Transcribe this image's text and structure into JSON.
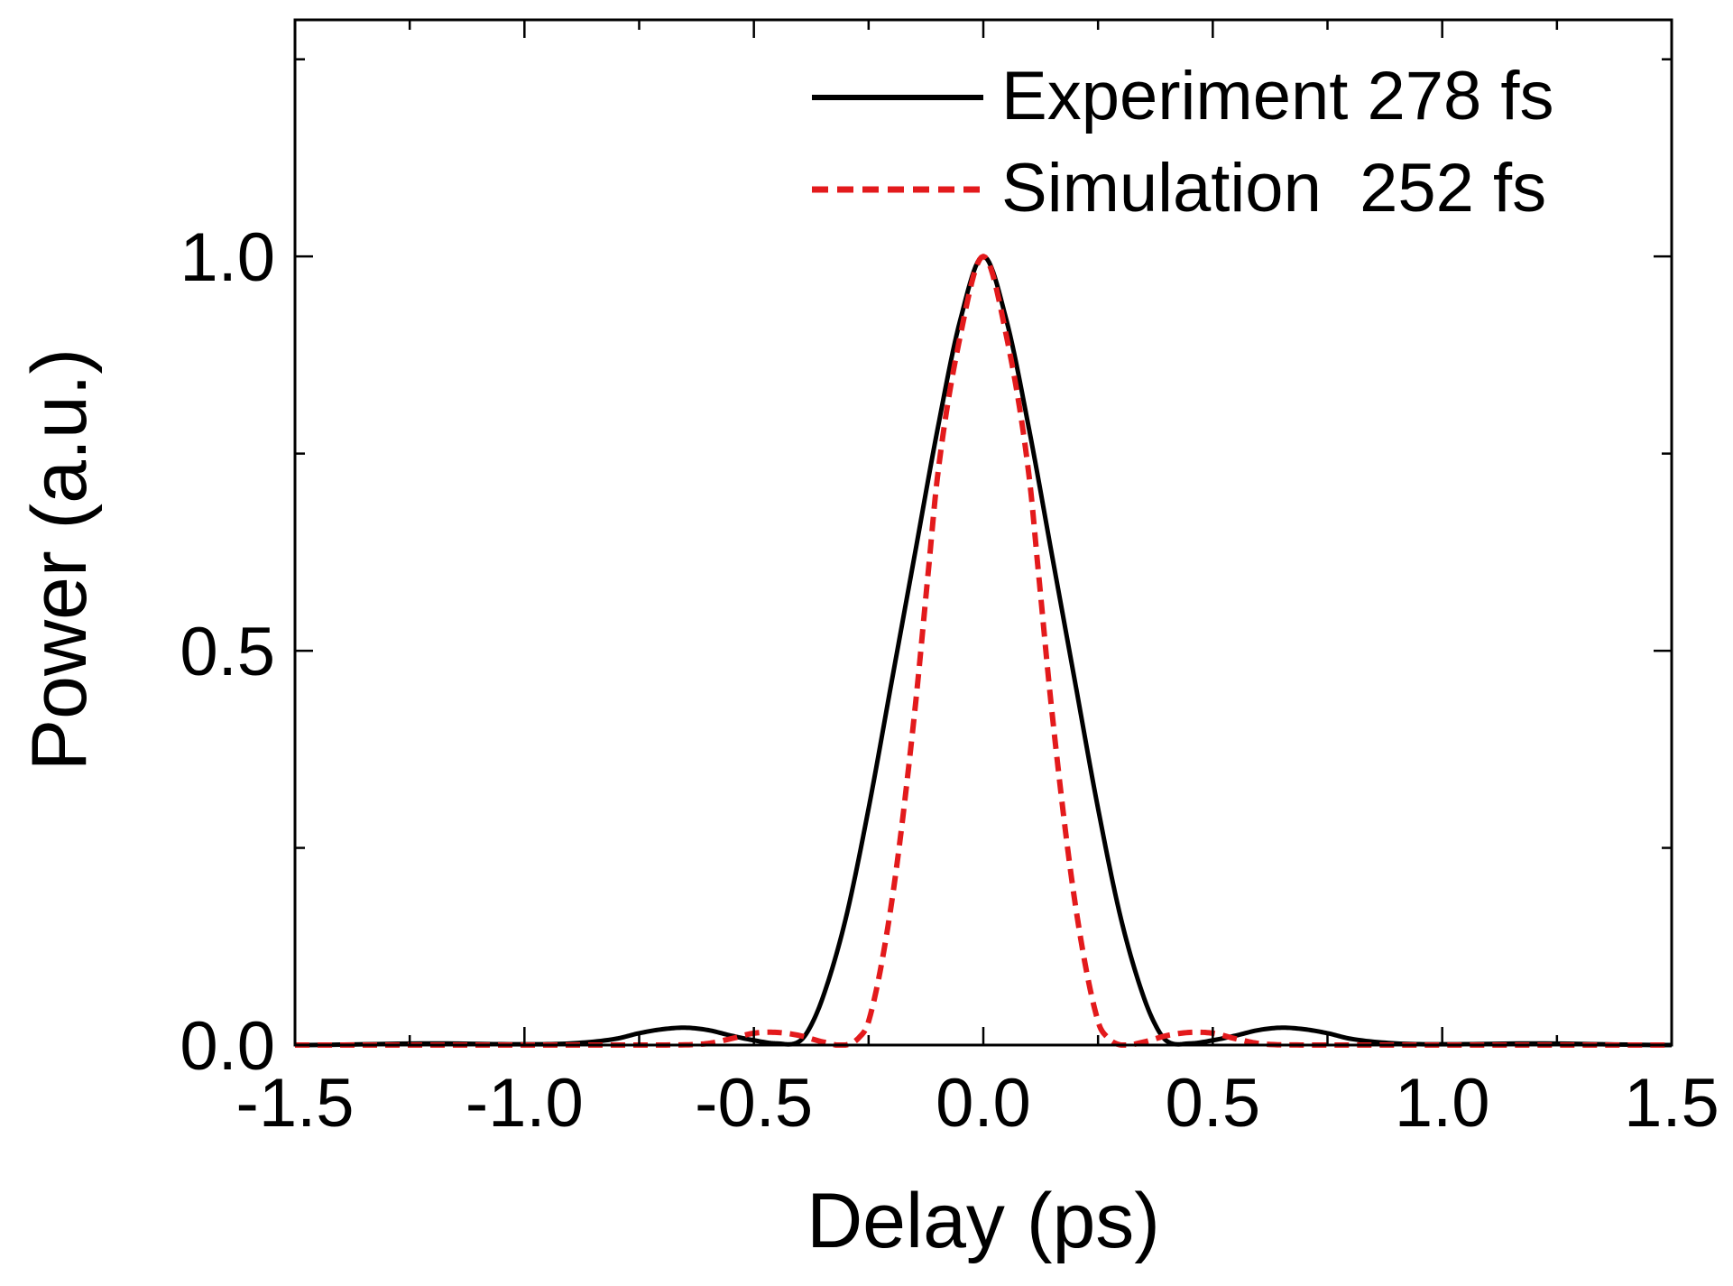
{
  "chart_data": {
    "type": "line",
    "title": "",
    "xlabel": "Delay (ps)",
    "ylabel": "Power (a.u.)",
    "xlim": [
      -1.5,
      1.5
    ],
    "ylim": [
      0.0,
      1.3
    ],
    "xticks": [
      -1.5,
      -1.0,
      -0.5,
      0.0,
      0.5,
      1.0,
      1.5
    ],
    "xtick_labels": [
      "-1.5",
      "-1.0",
      "-0.5",
      "0.0",
      "0.5",
      "1.0",
      "1.5"
    ],
    "yticks": [
      0.0,
      0.5,
      1.0
    ],
    "ytick_labels": [
      "0.0",
      "0.5",
      "1.0"
    ],
    "grid": false,
    "legend_position": "top-right",
    "series": [
      {
        "name": "Experiment 278 fs",
        "color": "#000000",
        "style": "solid",
        "x": [
          -1.5,
          -1.2,
          -1.0,
          -0.9,
          -0.8,
          -0.75,
          -0.7,
          -0.65,
          -0.6,
          -0.55,
          -0.5,
          -0.45,
          -0.4,
          -0.38,
          -0.35,
          -0.3,
          -0.25,
          -0.2,
          -0.15,
          -0.1,
          -0.05,
          0.0,
          0.05,
          0.1,
          0.15,
          0.2,
          0.25,
          0.3,
          0.35,
          0.38,
          0.4,
          0.45,
          0.5,
          0.55,
          0.6,
          0.65,
          0.7,
          0.75,
          0.8,
          0.9,
          1.0,
          1.2,
          1.5
        ],
        "y": [
          0.0,
          0.002,
          0.001,
          0.002,
          0.008,
          0.015,
          0.02,
          0.022,
          0.019,
          0.012,
          0.006,
          0.002,
          0.005,
          0.02,
          0.06,
          0.16,
          0.3,
          0.46,
          0.62,
          0.78,
          0.92,
          1.0,
          0.92,
          0.78,
          0.62,
          0.46,
          0.3,
          0.16,
          0.06,
          0.02,
          0.005,
          0.002,
          0.006,
          0.012,
          0.019,
          0.022,
          0.02,
          0.015,
          0.008,
          0.002,
          0.001,
          0.002,
          0.0
        ]
      },
      {
        "name": "Simulation  252 fs",
        "color": "#e31a1c",
        "style": "dashed",
        "x": [
          -1.5,
          -1.0,
          -0.7,
          -0.6,
          -0.55,
          -0.5,
          -0.45,
          -0.4,
          -0.35,
          -0.3,
          -0.27,
          -0.25,
          -0.2,
          -0.15,
          -0.12,
          -0.1,
          -0.05,
          0.0,
          0.05,
          0.1,
          0.12,
          0.15,
          0.2,
          0.25,
          0.27,
          0.3,
          0.35,
          0.4,
          0.45,
          0.5,
          0.55,
          0.6,
          0.7,
          1.0,
          1.5
        ],
        "y": [
          0.0,
          0.0,
          0.0,
          0.002,
          0.008,
          0.015,
          0.016,
          0.012,
          0.004,
          0.0,
          0.01,
          0.03,
          0.18,
          0.42,
          0.6,
          0.72,
          0.9,
          1.0,
          0.9,
          0.72,
          0.6,
          0.42,
          0.18,
          0.03,
          0.01,
          0.0,
          0.004,
          0.012,
          0.016,
          0.015,
          0.008,
          0.002,
          0.0,
          0.0,
          0.0
        ]
      }
    ]
  }
}
